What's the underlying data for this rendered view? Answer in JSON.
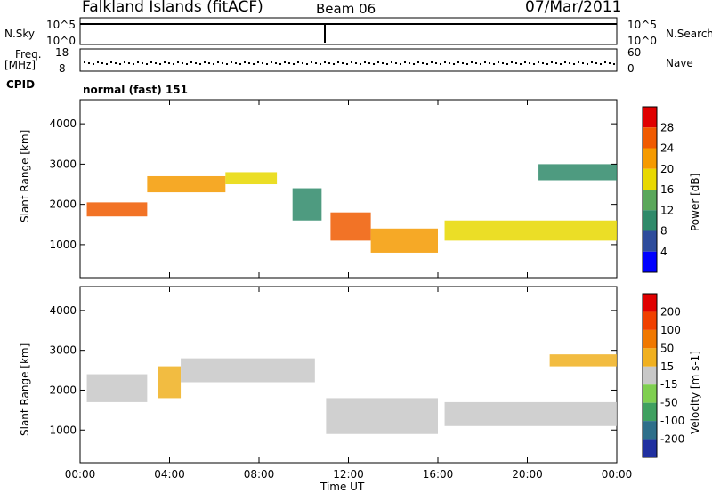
{
  "header": {
    "station": "Falkland Islands (fitACF)",
    "beam": "Beam 06",
    "date": "07/Mar/2011"
  },
  "strip_labels": {
    "nsky": "N.Sky",
    "nsky_top": "10^5",
    "nsky_bottom": "10^0",
    "nsearch": "N.Search",
    "nsearch_top": "10^5",
    "nsearch_bottom": "10^0",
    "freq_line1": "Freq.",
    "freq_line2": "[MHz]",
    "freq_top": "18",
    "freq_bottom": "8",
    "nave": "Nave",
    "nave_top": "60",
    "nave_bottom": "0",
    "cpid": "CPID",
    "mode": "normal (fast) 151"
  },
  "chart_data": [
    {
      "type": "heatmap",
      "panel": "power",
      "ylabel": "Slant Range [km]",
      "xlabel": "Time UT",
      "yticks": [
        "1000",
        "2000",
        "3000",
        "4000"
      ],
      "xticks": [
        "00:00",
        "04:00",
        "08:00",
        "12:00",
        "16:00",
        "20:00",
        "00:00"
      ],
      "ylim": [
        180,
        4600
      ],
      "xlim": [
        0,
        24
      ],
      "colorbar_label": "Power [dB]",
      "colorbar_ticks": [
        "4",
        "8",
        "12",
        "16",
        "20",
        "24",
        "28"
      ],
      "colorbar_colors": [
        "#0000ff",
        "#2e4c9c",
        "#2f8a6a",
        "#5aa75a",
        "#e8d800",
        "#f59a00",
        "#f05a00",
        "#e00000"
      ],
      "bands": [
        {
          "t0": 0.3,
          "t1": 3.0,
          "r0": 1700,
          "r1": 2050,
          "value": 26
        },
        {
          "t0": 3.0,
          "t1": 6.5,
          "r0": 2300,
          "r1": 2700,
          "value": 20
        },
        {
          "t0": 6.5,
          "t1": 8.8,
          "r0": 2500,
          "r1": 2800,
          "value": 18
        },
        {
          "t0": 9.5,
          "t1": 10.8,
          "r0": 1600,
          "r1": 2400,
          "value": 10
        },
        {
          "t0": 11.2,
          "t1": 13.0,
          "r0": 1100,
          "r1": 1800,
          "value": 24
        },
        {
          "t0": 13.0,
          "t1": 16.0,
          "r0": 800,
          "r1": 1400,
          "value": 20
        },
        {
          "t0": 16.3,
          "t1": 24.0,
          "r0": 1100,
          "r1": 1600,
          "value": 18
        },
        {
          "t0": 20.5,
          "t1": 24.0,
          "r0": 2600,
          "r1": 3000,
          "value": 10
        }
      ]
    },
    {
      "type": "heatmap",
      "panel": "velocity",
      "ylabel": "Slant Range [km]",
      "xlabel": "Time UT",
      "yticks": [
        "1000",
        "2000",
        "3000",
        "4000"
      ],
      "xticks": [
        "00:00",
        "04:00",
        "08:00",
        "12:00",
        "16:00",
        "20:00",
        "00:00"
      ],
      "ylim": [
        180,
        4600
      ],
      "xlim": [
        0,
        24
      ],
      "colorbar_label": "Velocity [m s-1]",
      "colorbar_ticks": [
        "200",
        "100",
        "50",
        "15",
        "-15",
        "-50",
        "-100",
        "-200"
      ],
      "colorbar_colors": [
        "#2030a0",
        "#2e6f8a",
        "#3fa060",
        "#7fcf50",
        "#c8c8c8",
        "#f0b020",
        "#f07800",
        "#f04000",
        "#e00000"
      ],
      "bands": [
        {
          "t0": 0.3,
          "t1": 3.0,
          "r0": 1700,
          "r1": 2400,
          "value": 0
        },
        {
          "t0": 3.5,
          "t1": 4.5,
          "r0": 1800,
          "r1": 2600,
          "value": -30
        },
        {
          "t0": 4.5,
          "t1": 10.5,
          "r0": 2200,
          "r1": 2800,
          "value": 0
        },
        {
          "t0": 11.0,
          "t1": 16.0,
          "r0": 900,
          "r1": 1800,
          "value": 0
        },
        {
          "t0": 16.3,
          "t1": 24.0,
          "r0": 1100,
          "r1": 1700,
          "value": 0
        },
        {
          "t0": 21.0,
          "t1": 24.0,
          "r0": 2600,
          "r1": 2900,
          "value": -30
        }
      ]
    }
  ]
}
